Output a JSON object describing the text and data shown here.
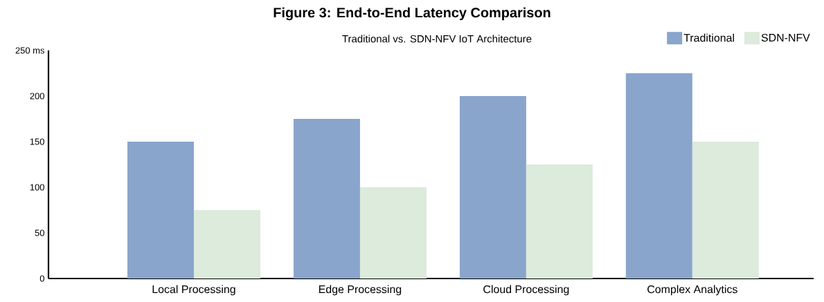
{
  "chart_data": {
    "type": "bar",
    "title": "Figure 3: End-to-End Latency Comparison",
    "subtitle": "Traditional vs. SDN-NFV IoT Architecture",
    "categories": [
      "Local Processing",
      "Edge Processing",
      "Cloud Processing",
      "Complex Analytics"
    ],
    "series": [
      {
        "name": "Traditional",
        "color": "#8aa5cc",
        "values": [
          150,
          175,
          200,
          225
        ]
      },
      {
        "name": "SDN-NFV",
        "color": "#dcebdc",
        "values": [
          75,
          100,
          125,
          150
        ]
      }
    ],
    "ylim": [
      0,
      250
    ],
    "yticks": [
      0,
      50,
      100,
      150,
      200,
      {
        "value": 250,
        "label": "250 ms"
      }
    ],
    "legend": "top right"
  }
}
